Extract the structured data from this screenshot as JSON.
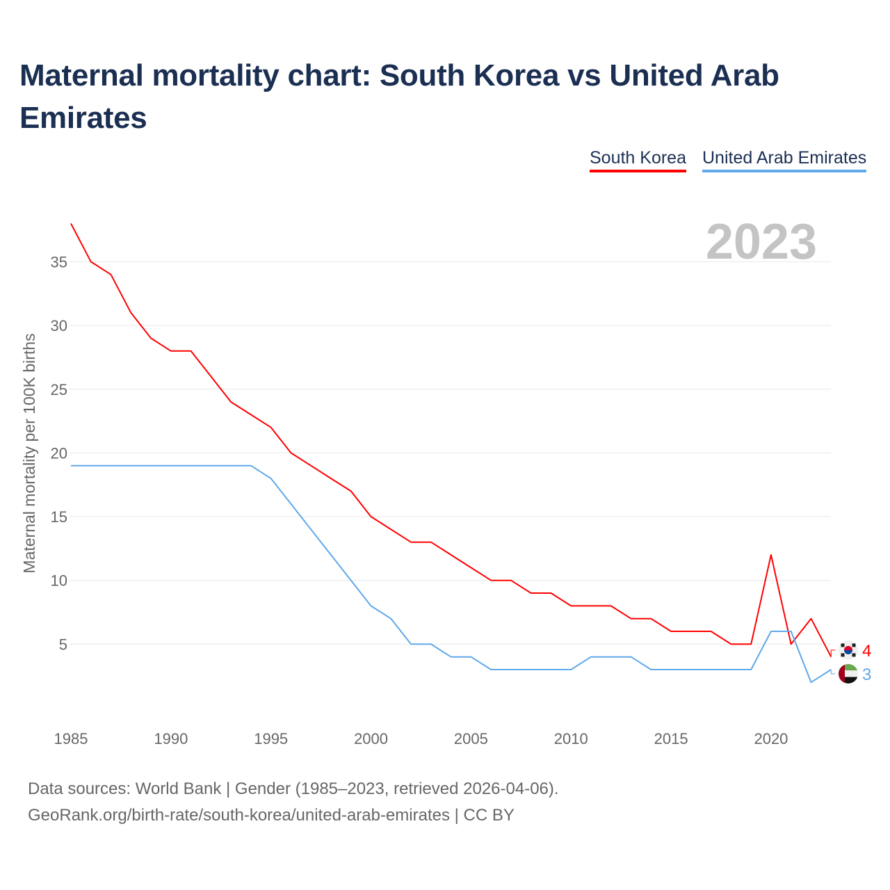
{
  "title": "Maternal mortality chart: South Korea vs United Arab Emirates",
  "footer": {
    "line1": "Data sources: World Bank | Gender (1985–2023, retrieved 2026-04-06).",
    "line2": "GeoRank.org/birth-rate/south-korea/united-arab-emirates | CC BY"
  },
  "chart_data": {
    "type": "line",
    "title": "Maternal mortality chart: South Korea vs United Arab Emirates",
    "ylabel": "Maternal mortality per 100K births",
    "xlabel": "",
    "year_watermark": "2023",
    "xlim": [
      1985,
      2023
    ],
    "ylim": [
      0,
      38
    ],
    "x_ticks": [
      1985,
      1990,
      1995,
      2000,
      2005,
      2010,
      2015,
      2020
    ],
    "y_ticks": [
      5,
      10,
      15,
      20,
      25,
      30,
      35
    ],
    "grid": true,
    "legend_position": "top-right",
    "x": [
      1985,
      1986,
      1987,
      1988,
      1989,
      1990,
      1991,
      1992,
      1993,
      1994,
      1995,
      1996,
      1997,
      1998,
      1999,
      2000,
      2001,
      2002,
      2003,
      2004,
      2005,
      2006,
      2007,
      2008,
      2009,
      2010,
      2011,
      2012,
      2013,
      2014,
      2015,
      2016,
      2017,
      2018,
      2019,
      2020,
      2021,
      2022,
      2023
    ],
    "series": [
      {
        "name": "South Korea",
        "color": "#ff0000",
        "end_label": "4",
        "values": [
          38,
          35,
          34,
          31,
          29,
          28,
          28,
          26,
          24,
          23,
          22,
          20,
          19,
          18,
          17,
          15,
          14,
          13,
          13,
          12,
          11,
          10,
          10,
          9,
          9,
          8,
          8,
          8,
          7,
          7,
          6,
          6,
          6,
          5,
          5,
          12,
          5,
          7,
          4
        ]
      },
      {
        "name": "United Arab Emirates",
        "color": "#5fa8ea",
        "end_label": "3",
        "values": [
          19,
          19,
          19,
          19,
          19,
          19,
          19,
          19,
          19,
          19,
          18,
          16,
          14,
          12,
          10,
          8,
          7,
          5,
          5,
          4,
          4,
          3,
          3,
          3,
          3,
          3,
          4,
          4,
          4,
          3,
          3,
          3,
          3,
          3,
          3,
          6,
          6,
          2,
          3
        ]
      }
    ]
  }
}
